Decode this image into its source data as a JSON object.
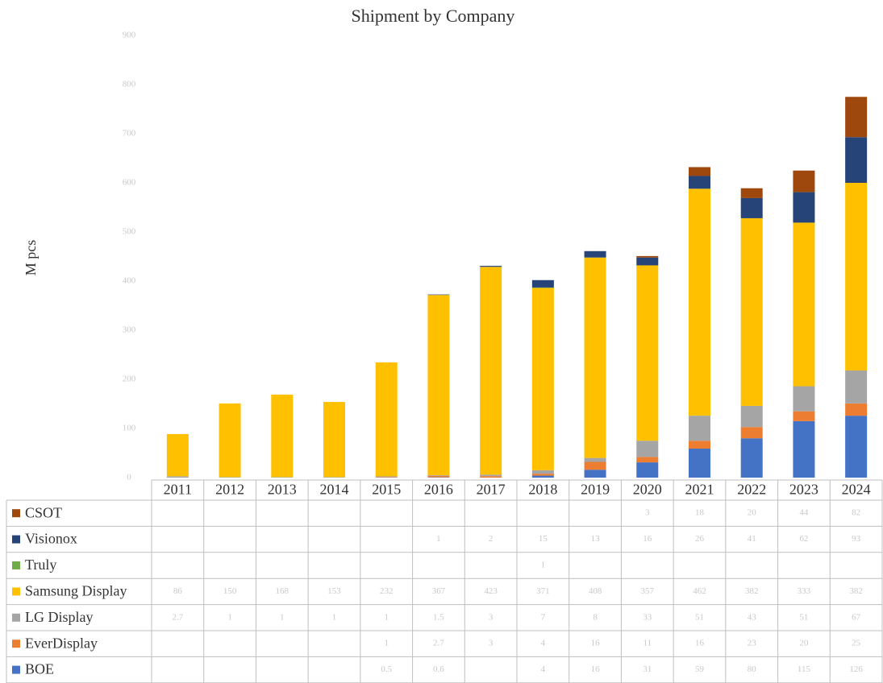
{
  "chart_data": {
    "type": "bar",
    "stacked": true,
    "title": "Shipment by Company",
    "y_label": "M pcs",
    "categories": [
      "2011",
      "2012",
      "2013",
      "2014",
      "2015",
      "2016",
      "2017",
      "2018",
      "2019",
      "2020",
      "2021",
      "2022",
      "2023",
      "2024"
    ],
    "series": [
      {
        "name": "BOE",
        "color": "#4472c4",
        "values": [
          null,
          null,
          null,
          null,
          0.5,
          0.6,
          null,
          4,
          16,
          31,
          59,
          80,
          115,
          126
        ]
      },
      {
        "name": "EverDisplay",
        "color": "#ed7d31",
        "values": [
          null,
          null,
          null,
          null,
          1,
          2.7,
          3,
          4,
          16,
          11,
          16,
          23,
          20,
          25
        ]
      },
      {
        "name": "LG Display",
        "color": "#a5a5a5",
        "values": [
          2.7,
          1,
          1,
          1,
          1,
          1.5,
          3,
          7,
          8,
          33,
          51,
          43,
          51,
          67
        ]
      },
      {
        "name": "Samsung Display",
        "color": "#ffc000",
        "values": [
          86,
          150,
          168,
          153,
          232,
          367,
          423,
          371,
          408,
          357,
          462,
          382,
          333,
          382
        ]
      },
      {
        "name": "Truly",
        "color": "#70ad47",
        "values": [
          null,
          null,
          null,
          null,
          null,
          null,
          null,
          1,
          null,
          null,
          null,
          null,
          null,
          null
        ]
      },
      {
        "name": "Visionox",
        "color": "#264478",
        "values": [
          null,
          null,
          null,
          null,
          null,
          1,
          2,
          15,
          13,
          16,
          26,
          41,
          62,
          93
        ]
      },
      {
        "name": "CSOT",
        "color": "#9e480e",
        "values": [
          null,
          null,
          null,
          null,
          null,
          null,
          null,
          null,
          null,
          3,
          18,
          20,
          44,
          82
        ]
      }
    ],
    "ylim": [
      0,
      900
    ],
    "yticks": [
      0,
      100,
      200,
      300,
      400,
      500,
      600,
      700,
      800,
      900
    ]
  }
}
